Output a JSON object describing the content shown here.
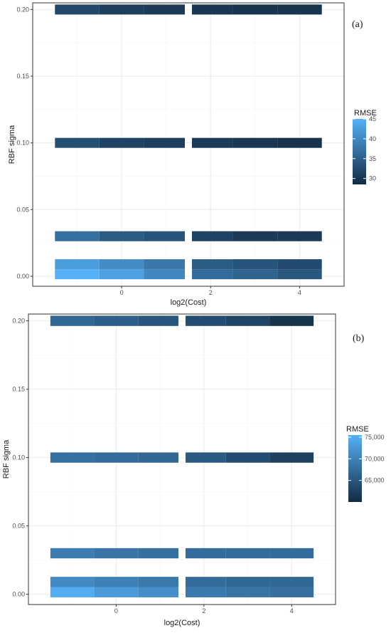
{
  "chart_data": [
    {
      "type": "heatmap",
      "panel_label": "(a)",
      "xlabel": "log2(Cost)",
      "ylabel": "RBF sigma",
      "xlim": [
        -2,
        5
      ],
      "ylim": [
        -0.0075,
        0.205
      ],
      "x_ticks": [
        0,
        2,
        4
      ],
      "x_tick_labels": [
        "0",
        "2",
        "4"
      ],
      "y_ticks": [
        0.0,
        0.05,
        0.1,
        0.15,
        0.2
      ],
      "y_tick_labels": [
        "0.00",
        "0.05",
        "0.10",
        "0.15",
        "0.20"
      ],
      "grid": true,
      "legend": {
        "title": "RMSE",
        "placement": "right",
        "range": [
          28.5,
          45
        ],
        "ticks": [
          30,
          35,
          40,
          45
        ],
        "tick_labels": [
          "30",
          "35",
          "40",
          "45"
        ],
        "color_low": "#132B43",
        "color_high": "#56B1F7"
      },
      "x_columns": [
        -1,
        0,
        1,
        2,
        3,
        4
      ],
      "y_rows": [
        0.0,
        0.005,
        0.03,
        0.1,
        0.2
      ],
      "values": [
        [
          45.0,
          43.0,
          40.0,
          36.5,
          35.5,
          34.0
        ],
        [
          42.5,
          40.5,
          38.0,
          34.5,
          33.5,
          32.5
        ],
        [
          37.0,
          34.5,
          33.5,
          31.5,
          30.5,
          30.5
        ],
        [
          33.0,
          31.5,
          31.0,
          30.5,
          30.0,
          29.5
        ],
        [
          32.0,
          31.0,
          30.5,
          30.0,
          29.5,
          29.5
        ]
      ]
    },
    {
      "type": "heatmap",
      "panel_label": "(b)",
      "xlabel": "log2(Cost)",
      "ylabel": "RBF sigma",
      "xlim": [
        -2,
        5
      ],
      "ylim": [
        -0.0075,
        0.205
      ],
      "x_ticks": [
        0,
        2,
        4
      ],
      "x_tick_labels": [
        "0",
        "2",
        "4"
      ],
      "y_ticks": [
        0.0,
        0.05,
        0.1,
        0.15,
        0.2
      ],
      "y_tick_labels": [
        "0.00",
        "0.05",
        "0.10",
        "0.15",
        "0.20"
      ],
      "grid": true,
      "legend": {
        "title": "RMSE",
        "placement": "right",
        "range": [
          60000,
          75500
        ],
        "ticks": [
          65000,
          70000,
          75000
        ],
        "tick_labels": [
          "65,000",
          "70,000",
          "75,000"
        ],
        "color_low": "#132B43",
        "color_high": "#56B1F7"
      },
      "x_columns": [
        -1,
        0,
        1,
        2,
        3,
        4
      ],
      "y_rows": [
        0.0,
        0.005,
        0.03,
        0.1,
        0.2
      ],
      "values": [
        [
          75000,
          73000,
          71500,
          69000,
          68500,
          68000
        ],
        [
          71000,
          70000,
          69000,
          67500,
          67000,
          67000
        ],
        [
          69500,
          68500,
          68000,
          67500,
          67500,
          67500
        ],
        [
          68000,
          67500,
          67000,
          65500,
          64000,
          62500
        ],
        [
          67000,
          66000,
          65000,
          64000,
          63000,
          61000
        ]
      ]
    }
  ]
}
